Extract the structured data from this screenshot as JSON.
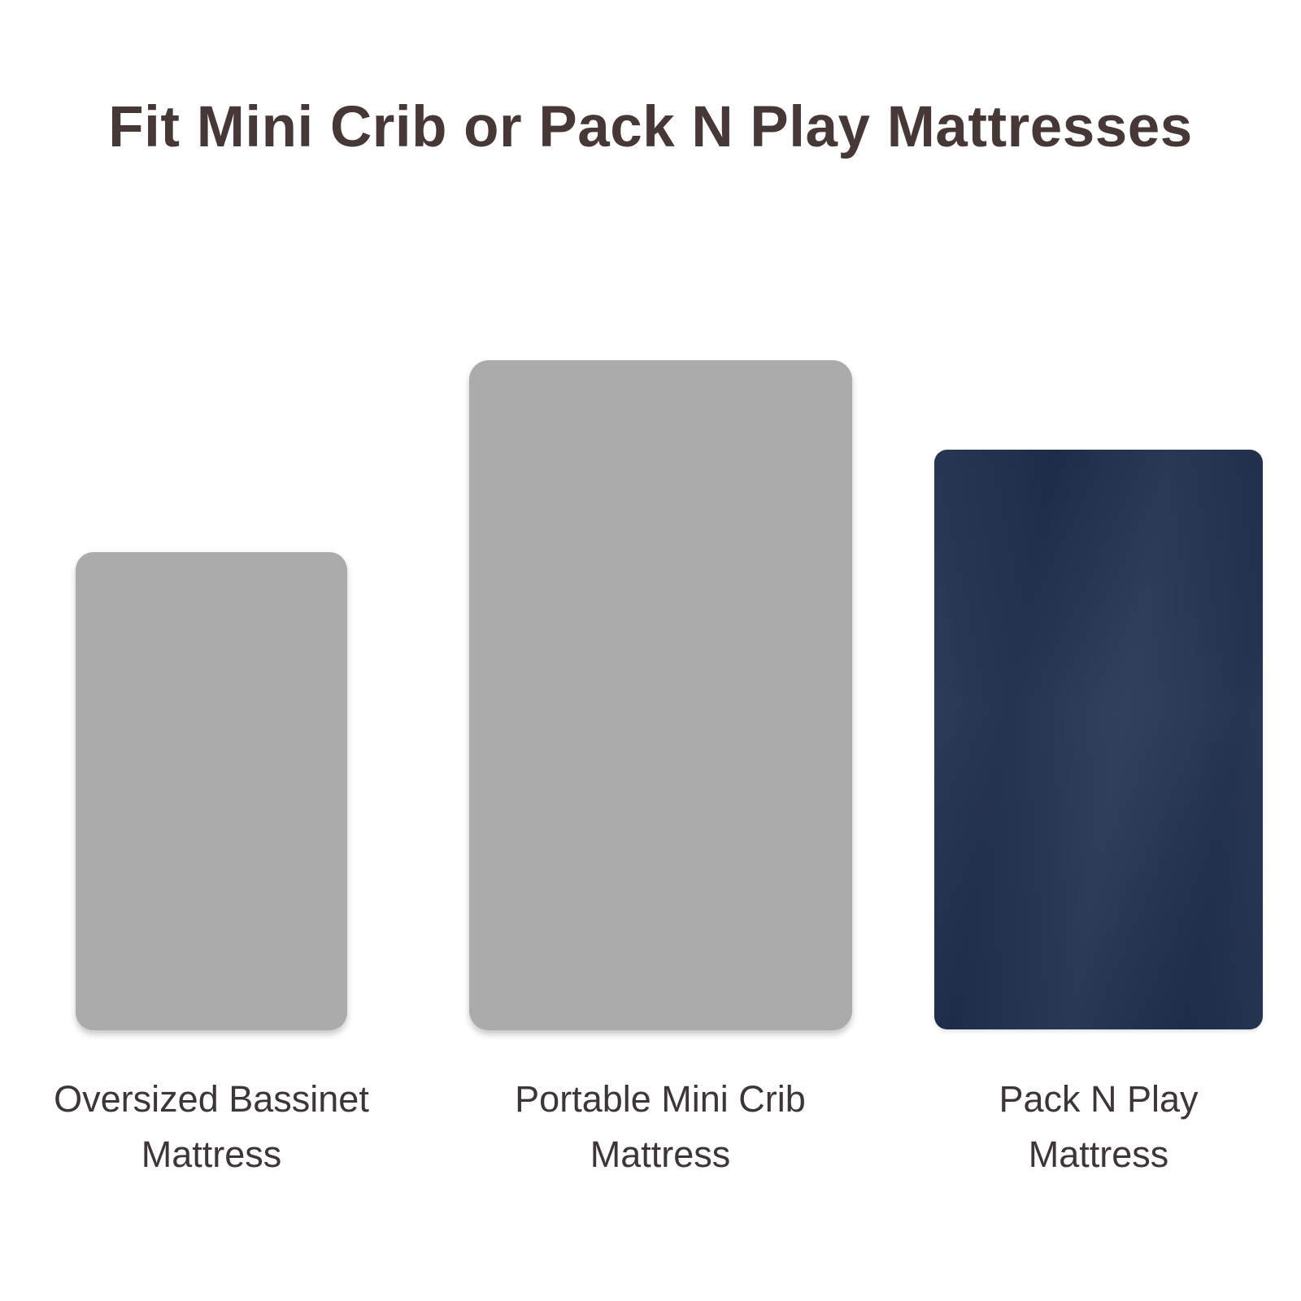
{
  "background": "#ffffff",
  "title": {
    "text": "Fit Mini Crib or Pack N Play Mattresses",
    "color": "#463837"
  },
  "label_color": "#3e3636",
  "mattresses": [
    {
      "id": "oversized-bassinet-mattress",
      "lines": [
        "Oversized Bassinet",
        "Mattress"
      ],
      "swatch_color": "#ababab",
      "relative_size": "small"
    },
    {
      "id": "portable-mini-crib-mattress",
      "lines": [
        "Portable Mini Crib",
        "Mattress"
      ],
      "swatch_color": "#ababab",
      "relative_size": "large"
    },
    {
      "id": "pack-n-play-mattress",
      "lines": [
        "Pack N Play",
        "Mattress"
      ],
      "swatch_color": "#223352",
      "relative_size": "medium"
    }
  ]
}
